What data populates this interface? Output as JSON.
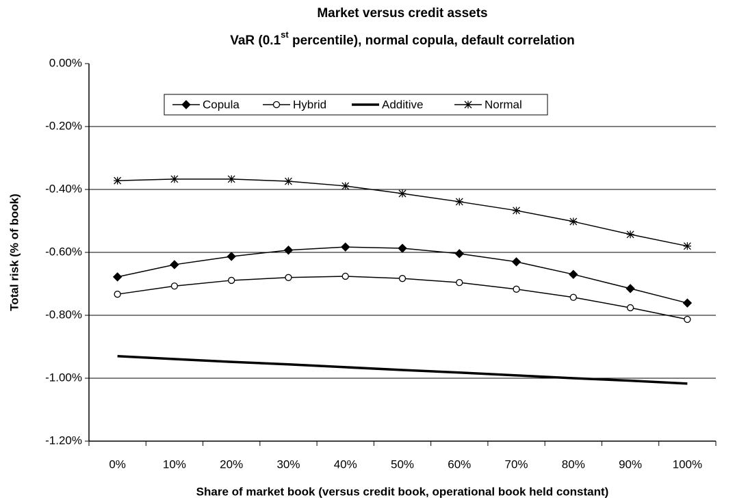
{
  "chart_data": {
    "type": "line",
    "title": "Market versus credit assets",
    "subtitle": [
      "VaR (0.1",
      "st",
      " percentile), normal copula, default correlation"
    ],
    "xlabel": "Share of market book (versus credit book, operational book held constant)",
    "ylabel": "Total risk (% of book)",
    "categories": [
      "0%",
      "10%",
      "20%",
      "30%",
      "40%",
      "50%",
      "60%",
      "70%",
      "80%",
      "90%",
      "100%"
    ],
    "ylim": [
      -1.2,
      0
    ],
    "yticks": [
      {
        "value": 0,
        "label": "0.00%"
      },
      {
        "value": -0.2,
        "label": "-0.20%"
      },
      {
        "value": -0.4,
        "label": "-0.40%"
      },
      {
        "value": -0.6,
        "label": "-0.60%"
      },
      {
        "value": -0.8,
        "label": "-0.80%"
      },
      {
        "value": -1.0,
        "label": "-1.00%"
      },
      {
        "value": -1.2,
        "label": "-1.20%"
      }
    ],
    "grid": true,
    "legend": "upper center",
    "series": [
      {
        "name": "Copula",
        "color": "#000000",
        "marker": "diamond",
        "line_width": 1.5,
        "values": [
          -0.678,
          -0.639,
          -0.613,
          -0.593,
          -0.583,
          -0.587,
          -0.604,
          -0.63,
          -0.67,
          -0.715,
          -0.761
        ]
      },
      {
        "name": "Hybrid",
        "color": "#000000",
        "marker": "circle",
        "line_width": 1.5,
        "values": [
          -0.733,
          -0.707,
          -0.689,
          -0.68,
          -0.676,
          -0.683,
          -0.696,
          -0.717,
          -0.743,
          -0.776,
          -0.813
        ]
      },
      {
        "name": "Additive",
        "color": "#000000",
        "marker": "none",
        "line_width": 3.5,
        "values": [
          -0.93,
          -0.939,
          -0.948,
          -0.956,
          -0.965,
          -0.974,
          -0.982,
          -0.991,
          -1.0,
          -1.008,
          -1.017
        ]
      },
      {
        "name": "Normal",
        "color": "#000000",
        "marker": "star",
        "line_width": 1.5,
        "values": [
          -0.372,
          -0.367,
          -0.367,
          -0.374,
          -0.389,
          -0.413,
          -0.439,
          -0.467,
          -0.502,
          -0.543,
          -0.58
        ]
      }
    ]
  }
}
